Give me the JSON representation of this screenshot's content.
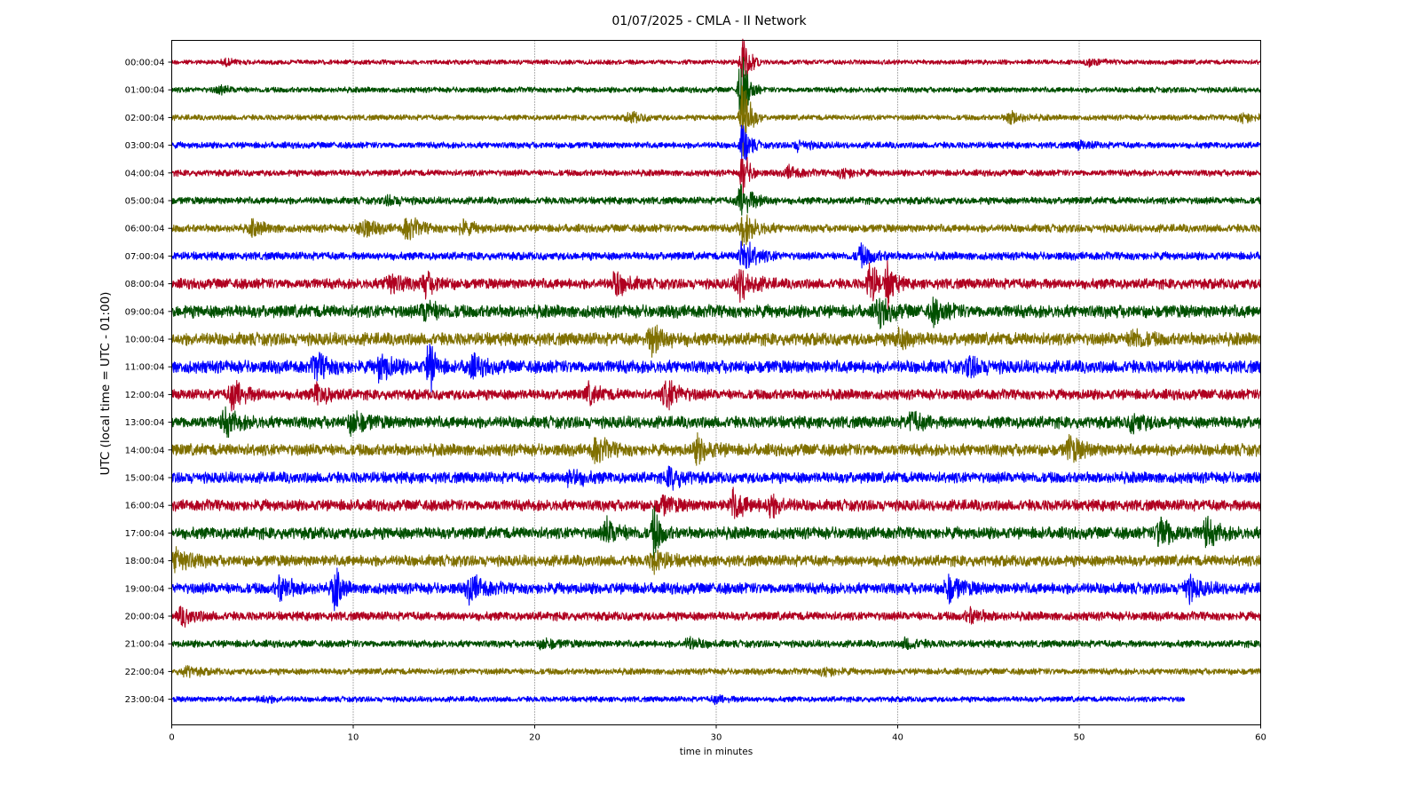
{
  "chart_data": {
    "type": "line",
    "title": "01/07/2025 - CMLA - II Network",
    "xlabel": "time in minutes",
    "ylabel": "UTC (local time = UTC - 01:00)",
    "xlim": [
      0,
      60
    ],
    "xticks": [
      0,
      10,
      20,
      30,
      40,
      50,
      60
    ],
    "grid": "vertical dotted at x ticks",
    "colors": [
      "#b00020",
      "#005000",
      "#807000",
      "#0000ff"
    ],
    "rows": [
      {
        "label": "00:00:04",
        "color": "#b00020",
        "amp": 3,
        "events": [
          {
            "t": 3,
            "a": 3
          },
          {
            "t": 31.5,
            "a": 40
          },
          {
            "t": 50.5,
            "a": 4
          }
        ]
      },
      {
        "label": "01:00:04",
        "color": "#005000",
        "amp": 3.5,
        "events": [
          {
            "t": 2.6,
            "a": 4
          },
          {
            "t": 31.4,
            "a": 55
          }
        ]
      },
      {
        "label": "02:00:04",
        "color": "#807000",
        "amp": 3.5,
        "events": [
          {
            "t": 31.5,
            "a": 60
          },
          {
            "t": 25.3,
            "a": 6
          },
          {
            "t": 46.2,
            "a": 8
          },
          {
            "t": 59,
            "a": 6
          }
        ]
      },
      {
        "label": "03:00:04",
        "color": "#0000ff",
        "amp": 4,
        "events": [
          {
            "t": 31.5,
            "a": 30
          },
          {
            "t": 34.5,
            "a": 5
          },
          {
            "t": 50,
            "a": 4
          }
        ]
      },
      {
        "label": "04:00:04",
        "color": "#b00020",
        "amp": 4,
        "events": [
          {
            "t": 31.5,
            "a": 28
          },
          {
            "t": 34,
            "a": 7
          },
          {
            "t": 37,
            "a": 6
          }
        ]
      },
      {
        "label": "05:00:04",
        "color": "#005000",
        "amp": 4.5,
        "events": [
          {
            "t": 31.4,
            "a": 20
          },
          {
            "t": 12,
            "a": 5
          }
        ]
      },
      {
        "label": "06:00:04",
        "color": "#807000",
        "amp": 5,
        "events": [
          {
            "t": 31.5,
            "a": 20
          },
          {
            "t": 10.5,
            "a": 12
          },
          {
            "t": 13,
            "a": 14
          },
          {
            "t": 16,
            "a": 8
          },
          {
            "t": 4.5,
            "a": 8
          }
        ]
      },
      {
        "label": "07:00:04",
        "color": "#0000ff",
        "amp": 5,
        "events": [
          {
            "t": 31.5,
            "a": 22
          },
          {
            "t": 38,
            "a": 12
          }
        ]
      },
      {
        "label": "08:00:04",
        "color": "#b00020",
        "amp": 6.5,
        "events": [
          {
            "t": 12,
            "a": 14
          },
          {
            "t": 14,
            "a": 12
          },
          {
            "t": 24.5,
            "a": 14
          },
          {
            "t": 31.3,
            "a": 20
          },
          {
            "t": 38.5,
            "a": 32
          },
          {
            "t": 39.5,
            "a": 28
          }
        ]
      },
      {
        "label": "09:00:04",
        "color": "#005000",
        "amp": 8,
        "events": [
          {
            "t": 14,
            "a": 12
          },
          {
            "t": 39,
            "a": 14
          },
          {
            "t": 42,
            "a": 12
          }
        ]
      },
      {
        "label": "10:00:04",
        "color": "#807000",
        "amp": 8,
        "events": [
          {
            "t": 26.5,
            "a": 18
          },
          {
            "t": 40,
            "a": 10
          },
          {
            "t": 53,
            "a": 10
          }
        ]
      },
      {
        "label": "11:00:04",
        "color": "#0000ff",
        "amp": 8,
        "events": [
          {
            "t": 8,
            "a": 14
          },
          {
            "t": 11.5,
            "a": 16
          },
          {
            "t": 14.2,
            "a": 32
          },
          {
            "t": 16.5,
            "a": 12
          },
          {
            "t": 44,
            "a": 10
          }
        ]
      },
      {
        "label": "12:00:04",
        "color": "#b00020",
        "amp": 6.5,
        "events": [
          {
            "t": 3.4,
            "a": 18
          },
          {
            "t": 8,
            "a": 12
          },
          {
            "t": 27.3,
            "a": 18
          },
          {
            "t": 23,
            "a": 10
          }
        ]
      },
      {
        "label": "13:00:04",
        "color": "#005000",
        "amp": 7.5,
        "events": [
          {
            "t": 3,
            "a": 14
          },
          {
            "t": 10,
            "a": 14
          },
          {
            "t": 40.8,
            "a": 10
          },
          {
            "t": 53,
            "a": 10
          }
        ]
      },
      {
        "label": "14:00:04",
        "color": "#807000",
        "amp": 7.5,
        "events": [
          {
            "t": 23.4,
            "a": 14
          },
          {
            "t": 29,
            "a": 14
          },
          {
            "t": 49.5,
            "a": 14
          }
        ]
      },
      {
        "label": "15:00:04",
        "color": "#0000ff",
        "amp": 7,
        "events": [
          {
            "t": 22,
            "a": 10
          },
          {
            "t": 27.5,
            "a": 12
          }
        ]
      },
      {
        "label": "16:00:04",
        "color": "#b00020",
        "amp": 7,
        "events": [
          {
            "t": 31,
            "a": 16
          },
          {
            "t": 33,
            "a": 12
          },
          {
            "t": 27,
            "a": 10
          }
        ]
      },
      {
        "label": "17:00:04",
        "color": "#005000",
        "amp": 7.5,
        "events": [
          {
            "t": 24,
            "a": 14
          },
          {
            "t": 26.6,
            "a": 30
          },
          {
            "t": 54.5,
            "a": 22
          },
          {
            "t": 57,
            "a": 16
          }
        ]
      },
      {
        "label": "18:00:04",
        "color": "#807000",
        "amp": 7,
        "events": [
          {
            "t": 0.3,
            "a": 16
          },
          {
            "t": 26.6,
            "a": 12
          }
        ]
      },
      {
        "label": "19:00:04",
        "color": "#0000ff",
        "amp": 7,
        "events": [
          {
            "t": 6,
            "a": 14
          },
          {
            "t": 9,
            "a": 26
          },
          {
            "t": 16.5,
            "a": 16
          },
          {
            "t": 42.8,
            "a": 16
          },
          {
            "t": 56,
            "a": 14
          }
        ]
      },
      {
        "label": "20:00:04",
        "color": "#b00020",
        "amp": 5.5,
        "events": [
          {
            "t": 0.6,
            "a": 10
          },
          {
            "t": 44,
            "a": 8
          }
        ]
      },
      {
        "label": "21:00:04",
        "color": "#005000",
        "amp": 4.5,
        "events": [
          {
            "t": 20.5,
            "a": 6
          },
          {
            "t": 28.5,
            "a": 6
          },
          {
            "t": 40.5,
            "a": 6
          }
        ]
      },
      {
        "label": "22:00:04",
        "color": "#807000",
        "amp": 4,
        "events": [
          {
            "t": 0.8,
            "a": 6
          },
          {
            "t": 36,
            "a": 5
          }
        ]
      },
      {
        "label": "23:00:04",
        "color": "#0000ff",
        "amp": 3.5,
        "end": 55.8,
        "events": [
          {
            "t": 5,
            "a": 4
          },
          {
            "t": 30,
            "a": 4
          }
        ]
      }
    ]
  }
}
